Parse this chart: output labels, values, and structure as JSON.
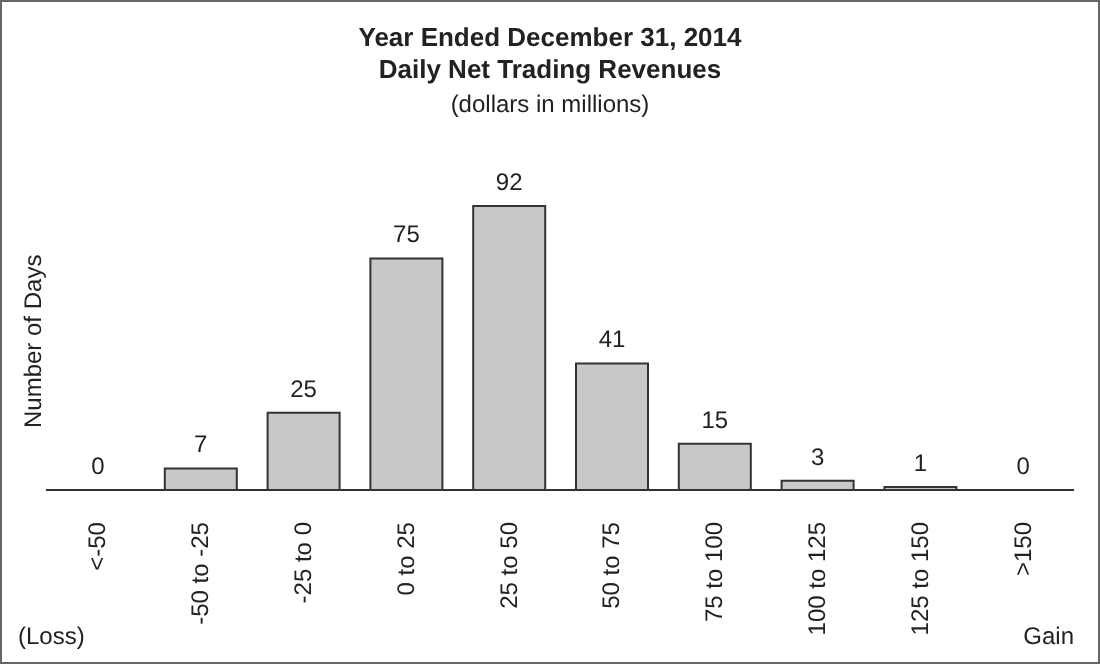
{
  "chart_data": {
    "type": "bar",
    "title": "Year Ended December 31, 2014",
    "subtitle": "Daily Net Trading Revenues",
    "ylabel": "Number of Days",
    "annotations": [
      "(dollars in millions)",
      "(Loss)",
      "Gain"
    ],
    "categories": [
      "<-50",
      "-50 to -25",
      "-25 to 0",
      "0 to 25",
      "25 to 50",
      "50 to 75",
      "75 to 100",
      "100 to 125",
      "125 to 150",
      ">150"
    ],
    "values": [
      0,
      7,
      25,
      75,
      92,
      41,
      15,
      3,
      1,
      0
    ],
    "color": "#c8c8c8",
    "data_labels": true,
    "grid": false,
    "legend": false
  }
}
